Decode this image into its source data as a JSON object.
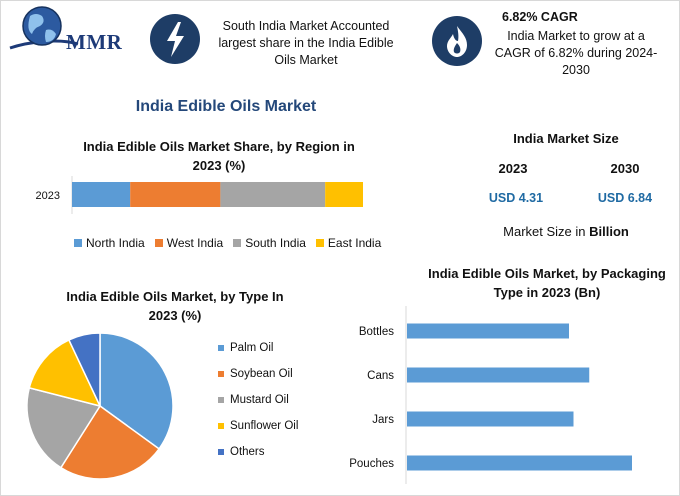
{
  "header": {
    "logo_text": "MMR",
    "highlight1": {
      "icon": "lightning-icon",
      "lines": [
        "South India Market Accounted",
        "largest share in the India Edible",
        "Oils Market"
      ]
    },
    "highlight2": {
      "icon": "flame-icon",
      "title": "6.82% CAGR",
      "lines": [
        "India Market to grow at a",
        "CAGR of 6.82% during 2024-",
        "2030"
      ]
    }
  },
  "main_title": "India Edible Oils Market",
  "market_size": {
    "heading": "India Market Size",
    "year1": "2023",
    "year2": "2030",
    "value1": "USD 4.31",
    "value2": "USD 6.84",
    "footnote_prefix": "Market Size in ",
    "footnote_unit": "Billion"
  },
  "colors": {
    "north": "#5b9bd5",
    "west": "#ed7d31",
    "south": "#a5a5a5",
    "east": "#ffc000",
    "others": "#4472c4",
    "icon_bg": "#1e3d66",
    "value_blue": "#1f6aa3"
  },
  "chart_data": [
    {
      "type": "bar",
      "orientation": "horizontal-stacked",
      "title_lines": [
        "India Edible Oils Market Share, by Region in",
        "2023 (%)"
      ],
      "categories": [
        "2023"
      ],
      "series": [
        {
          "name": "North India",
          "values": [
            20
          ]
        },
        {
          "name": "West India",
          "values": [
            31
          ]
        },
        {
          "name": "South India",
          "values": [
            36
          ]
        },
        {
          "name": "East India",
          "values": [
            13
          ]
        }
      ],
      "legend_position": "bottom"
    },
    {
      "type": "pie",
      "title_lines": [
        "India Edible Oils Market, by Type In",
        "2023 (%)"
      ],
      "labels": [
        "Palm Oil",
        "Soybean Oil",
        "Mustard Oil",
        "Sunflower Oil",
        "Others"
      ],
      "values": [
        35,
        24,
        20,
        14,
        7
      ],
      "legend_position": "right"
    },
    {
      "type": "bar",
      "orientation": "horizontal",
      "title_lines": [
        "India Edible Oils Market, by Packaging",
        "Type in 2023 (Bn)"
      ],
      "categories": [
        "Bottles",
        "Cans",
        "Jars",
        "Pouches"
      ],
      "values": [
        0.72,
        0.81,
        0.74,
        1.0
      ]
    }
  ]
}
